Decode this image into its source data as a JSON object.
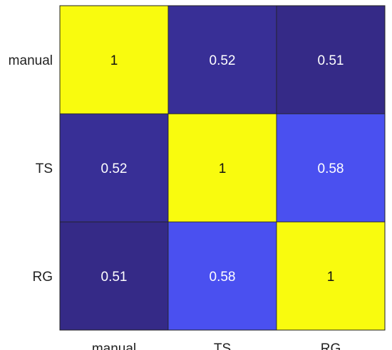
{
  "chart_data": {
    "type": "heatmap",
    "title": "",
    "xlabel": "",
    "ylabel": "",
    "x_categories": [
      "manual",
      "TS",
      "RG"
    ],
    "y_categories": [
      "manual",
      "TS",
      "RG"
    ],
    "values": [
      [
        1,
        0.52,
        0.51
      ],
      [
        0.52,
        1,
        0.58
      ],
      [
        0.51,
        0.58,
        1
      ]
    ],
    "value_labels": [
      [
        "1",
        "0.52",
        "0.51"
      ],
      [
        "0.52",
        "1",
        "0.58"
      ],
      [
        "0.51",
        "0.58",
        "1"
      ]
    ],
    "colormap": "parula",
    "colors": {
      "low": "#352a87",
      "mid": "#4a50f0",
      "high": "#f9fb0e"
    },
    "legend": "none",
    "grid": false
  }
}
